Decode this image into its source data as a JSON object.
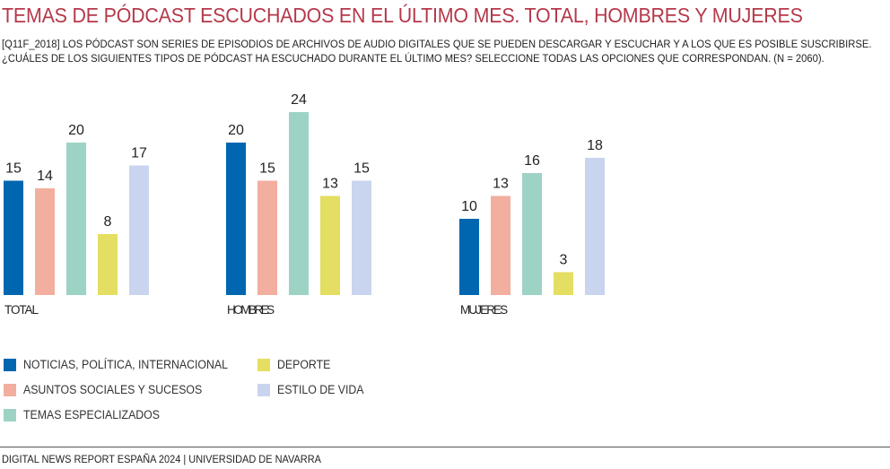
{
  "title": "TEMAS DE PÓDCAST ESCUCHADOS EN EL ÚLTIMO MES. TOTAL, HOMBRES Y MUJERES",
  "subtitle_lines": [
    "[Q11F_2018] LOS PÓDCAST SON SERIES DE EPISODIOS DE ARCHIVOS DE AUDIO DIGITALES QUE SE PUEDEN DESCARGAR Y ESCUCHAR Y A LOS QUE ES POSIBLE SUSCRIBIRSE.",
    "¿CUÁLES DE LOS SIGUIENTES TIPOS DE PÓDCAST HA ESCUCHADO DURANTE EL ÚLTIMO MES? SELECCIONE TODAS LAS OPCIONES QUE CORRESPONDAN. (N = 2060)."
  ],
  "footer": "DIGITAL NEWS REPORT ESPAÑA 2024 | UNIVERSIDAD DE NAVARRA",
  "chart_data": {
    "type": "bar",
    "title": "TEMAS DE PÓDCAST ESCUCHADOS EN EL ÚLTIMO MES. TOTAL, HOMBRES Y MUJERES",
    "xlabel": "",
    "ylabel": "",
    "ylim": [
      0,
      24
    ],
    "grid": false,
    "legend_position": "bottom-left",
    "categories": [
      "TOTAL",
      "HOMBRES",
      "MUJERES"
    ],
    "series": [
      {
        "name": "NOTICIAS, POLÍTICA, INTERNACIONAL",
        "color": "#0066b0",
        "values": [
          15,
          20,
          10
        ]
      },
      {
        "name": "ASUNTOS SOCIALES Y SUCESOS",
        "color": "#f2ae9f",
        "values": [
          14,
          15,
          13
        ]
      },
      {
        "name": "TEMAS ESPECIALIZADOS",
        "color": "#9dd3c5",
        "values": [
          20,
          24,
          16
        ]
      },
      {
        "name": "DEPORTE",
        "color": "#e4de62",
        "values": [
          8,
          13,
          3
        ]
      },
      {
        "name": "ESTILO DE VIDA",
        "color": "#c9d5ee",
        "values": [
          17,
          15,
          18
        ]
      }
    ]
  }
}
